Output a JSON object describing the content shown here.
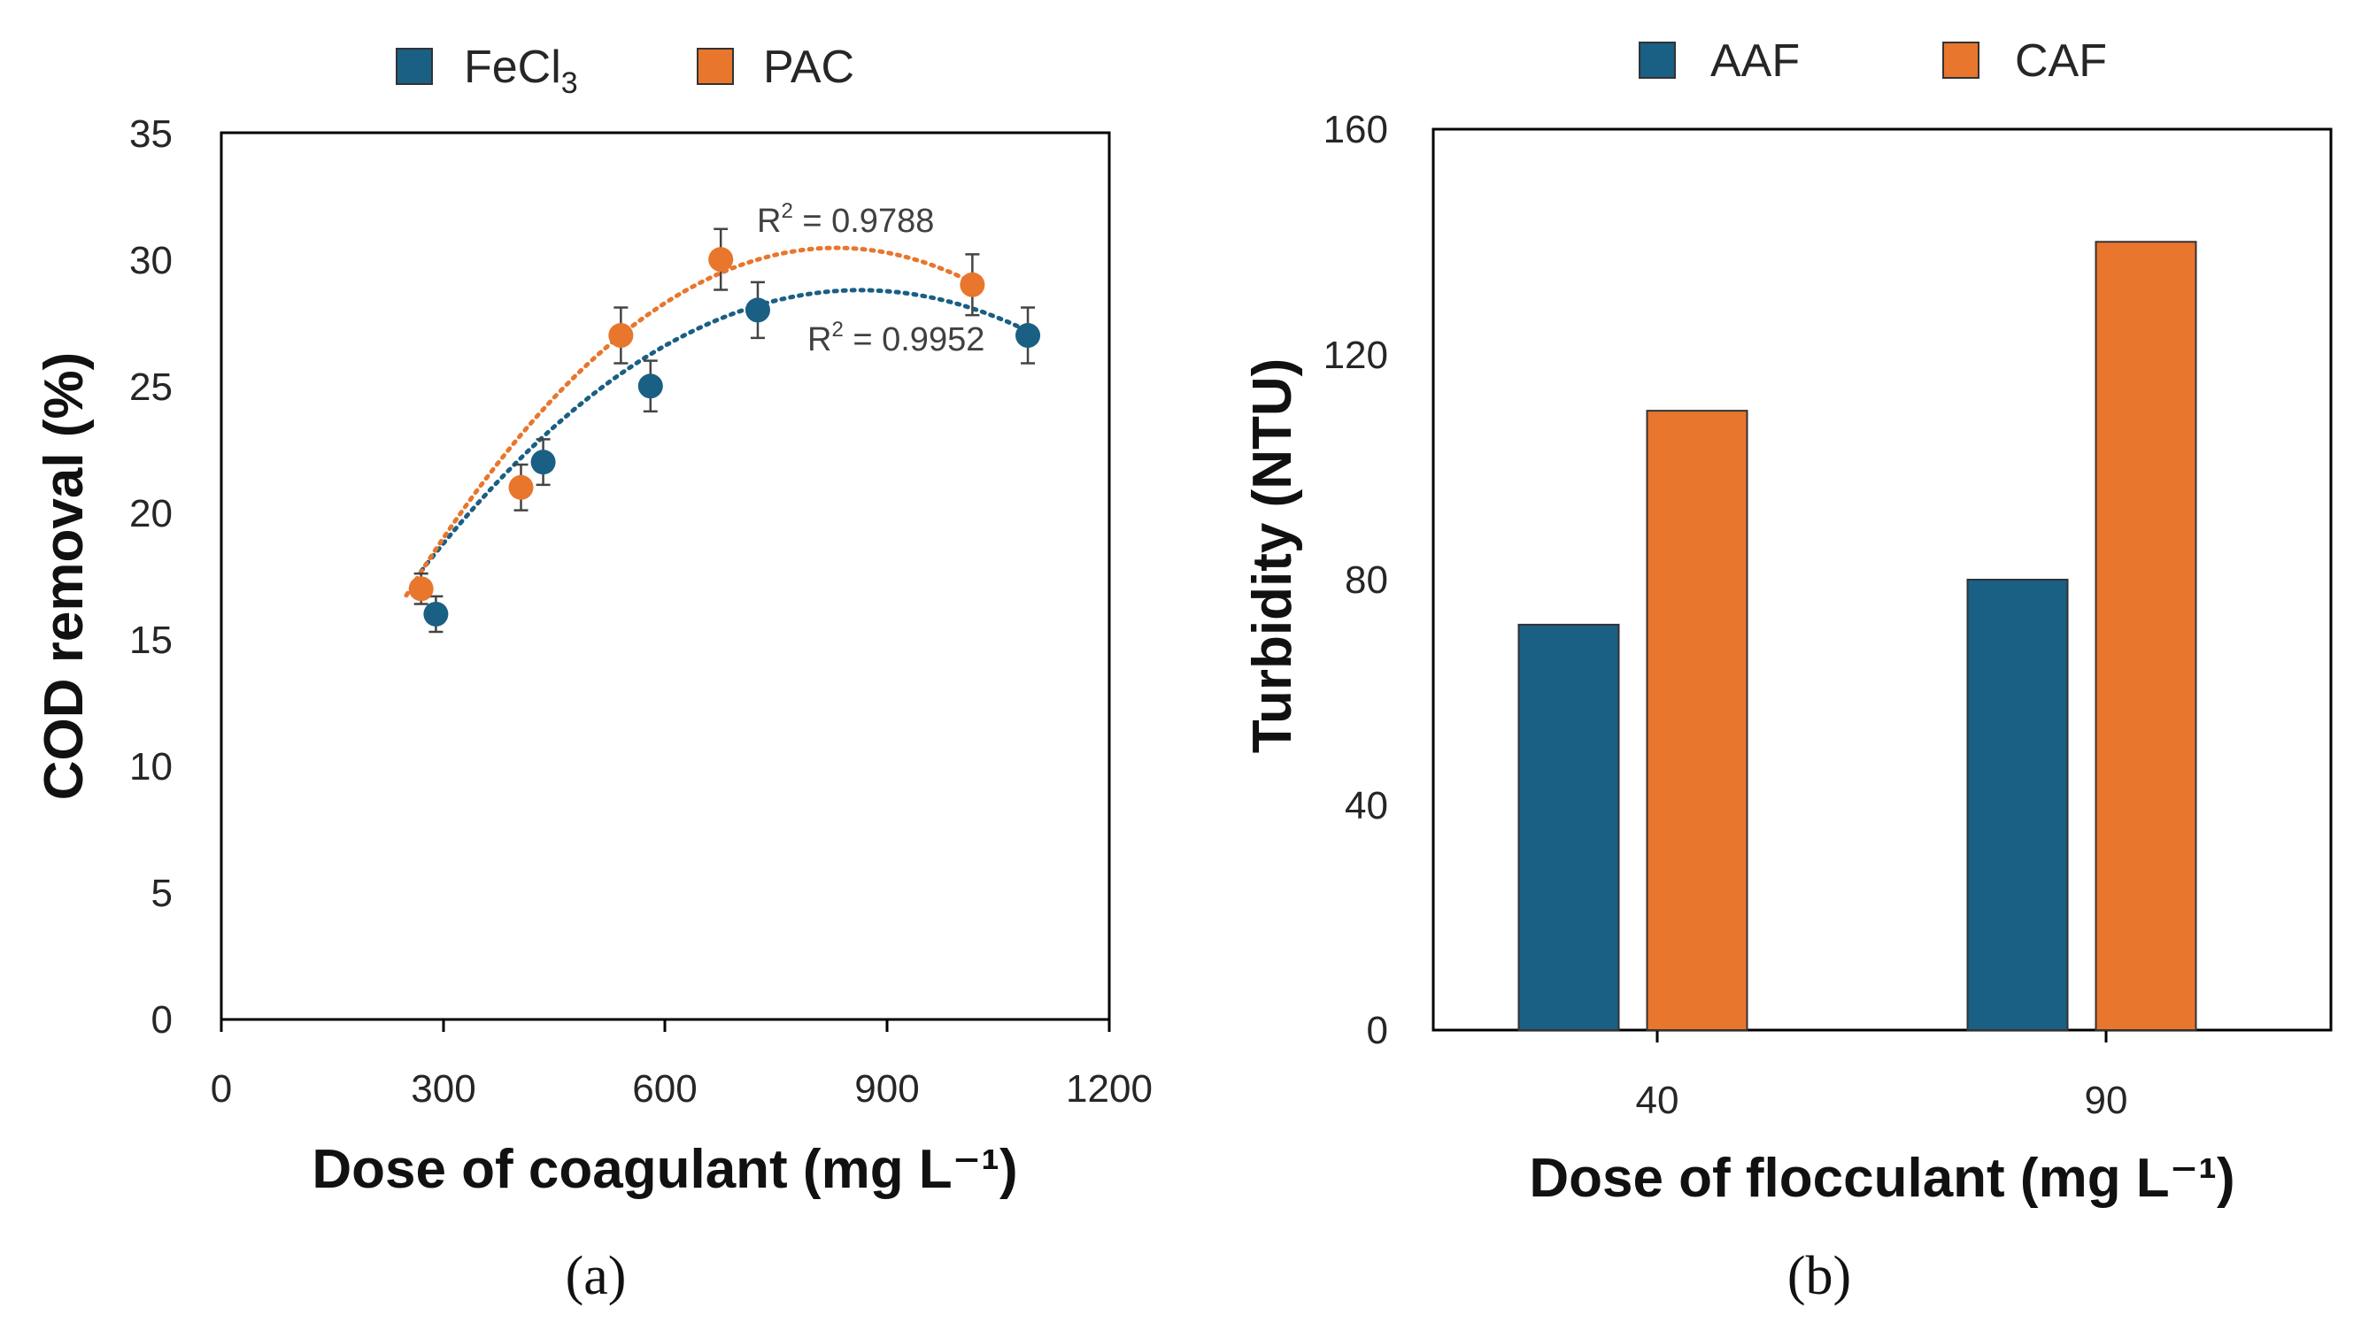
{
  "chart_data": [
    {
      "panel": "(a)",
      "type": "scatter",
      "title": "",
      "xlabel": "Dose of coagulant (mg L⁻¹)",
      "ylabel": "COD removal (%)",
      "xlim": [
        0,
        1200
      ],
      "ylim": [
        0,
        35
      ],
      "xticks": [
        "0",
        "300",
        "600",
        "900",
        "1200"
      ],
      "yticks": [
        "0",
        "5",
        "10",
        "15",
        "20",
        "25",
        "30",
        "35"
      ],
      "series": [
        {
          "name": "FeCl3",
          "legend_main": "FeCl",
          "legend_sub": "3",
          "color": "#1a5f84",
          "x": [
            290,
            435,
            580,
            725,
            1090
          ],
          "y": [
            16,
            22,
            25,
            28,
            27
          ],
          "error": [
            0.7,
            0.9,
            1.0,
            1.1,
            1.1
          ],
          "trendline": {
            "type": "polynomial",
            "coef": [
              5.3,
              0.0544,
              -3.15e-05
            ],
            "x_range": [
              270,
              1090
            ]
          },
          "r2_prefix": "R",
          "r2_sup": "2",
          "r2_value": " = 0.9952"
        },
        {
          "name": "PAC",
          "legend_main": "PAC",
          "legend_sub": "",
          "color": "#e8762d",
          "x": [
            270,
            405,
            540,
            675,
            1015
          ],
          "y": [
            17,
            21,
            27,
            30,
            29
          ],
          "error": [
            0.6,
            0.9,
            1.1,
            1.2,
            1.2
          ],
          "trendline": {
            "type": "polynomial",
            "coef": [
              2.4,
              0.0675,
              -4.06e-05
            ],
            "x_range": [
              250,
              1015
            ]
          },
          "r2_prefix": "R",
          "r2_sup": "2",
          "r2_value": " = 0.9788"
        }
      ]
    },
    {
      "panel": "(b)",
      "type": "bar",
      "title": "",
      "xlabel": "Dose of flocculant (mg L⁻¹)",
      "ylabel": "Turbidity (NTU)",
      "categories": [
        "40",
        "90"
      ],
      "ylim": [
        0,
        160
      ],
      "yticks": [
        "0",
        "40",
        "80",
        "120",
        "160"
      ],
      "series": [
        {
          "name": "AAF",
          "color": "#1a5f84",
          "values": [
            72,
            80
          ]
        },
        {
          "name": "CAF",
          "color": "#e8762d",
          "values": [
            110,
            140
          ]
        }
      ]
    }
  ]
}
